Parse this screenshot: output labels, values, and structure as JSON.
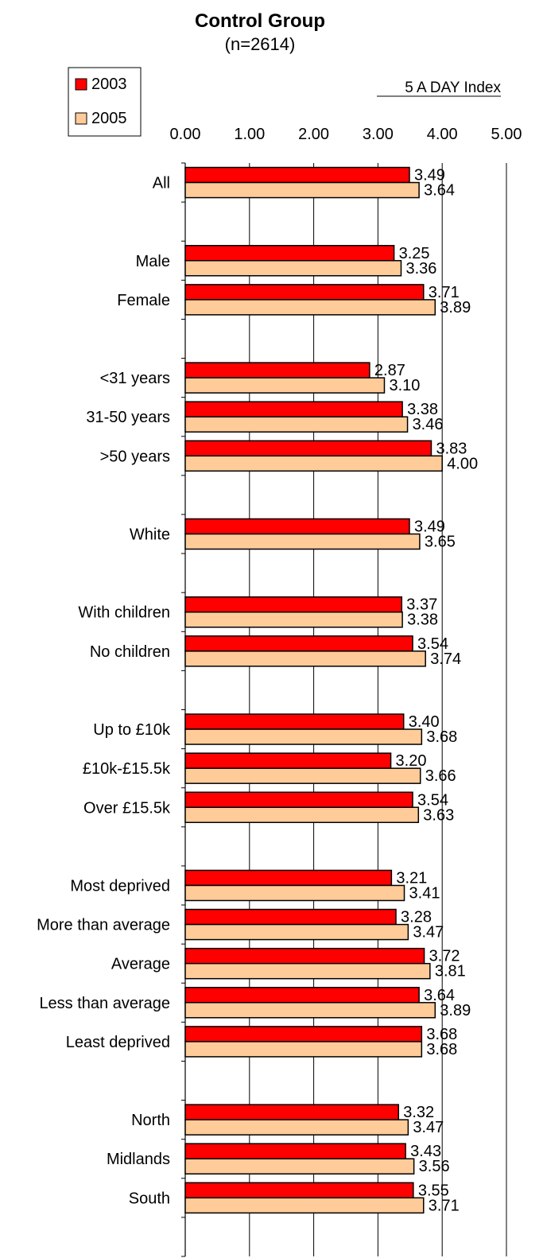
{
  "chart_data": {
    "type": "bar",
    "orientation": "horizontal",
    "title": "Control Group",
    "subtitle": "(n=2614)",
    "index_label": "5 A DAY Index",
    "xlim": [
      0,
      5
    ],
    "x_ticks": [
      "0.00",
      "1.00",
      "2.00",
      "3.00",
      "4.00",
      "5.00"
    ],
    "legend": {
      "placement": "top-left"
    },
    "colors": {
      "2003": "#ff0000",
      "2005": "#ffcc99"
    },
    "series": [
      {
        "name": "2003",
        "values": [
          3.49,
          3.25,
          3.71,
          2.87,
          3.38,
          3.83,
          3.49,
          3.37,
          3.54,
          3.4,
          3.2,
          3.54,
          3.21,
          3.28,
          3.72,
          3.64,
          3.68,
          3.32,
          3.43,
          3.55
        ]
      },
      {
        "name": "2005",
        "values": [
          3.64,
          3.36,
          3.89,
          3.1,
          3.46,
          4.0,
          3.65,
          3.38,
          3.74,
          3.68,
          3.66,
          3.63,
          3.41,
          3.47,
          3.81,
          3.89,
          3.68,
          3.47,
          3.56,
          3.71
        ]
      }
    ],
    "categories": [
      "All",
      "Male",
      "Female",
      "<31 years",
      "31-50 years",
      ">50 years",
      "White",
      "With children",
      "No children",
      "Up to £10k",
      "£10k-£15.5k",
      "Over £15.5k",
      "Most deprived",
      "More than average",
      "Average",
      "Less than average",
      "Least deprived",
      "North",
      "Midlands",
      "South"
    ],
    "slots": [
      0,
      2,
      3,
      5,
      6,
      7,
      9,
      11,
      12,
      14,
      15,
      16,
      18,
      19,
      20,
      21,
      22,
      24,
      25,
      26
    ],
    "total_slots": 28,
    "grid": true
  }
}
